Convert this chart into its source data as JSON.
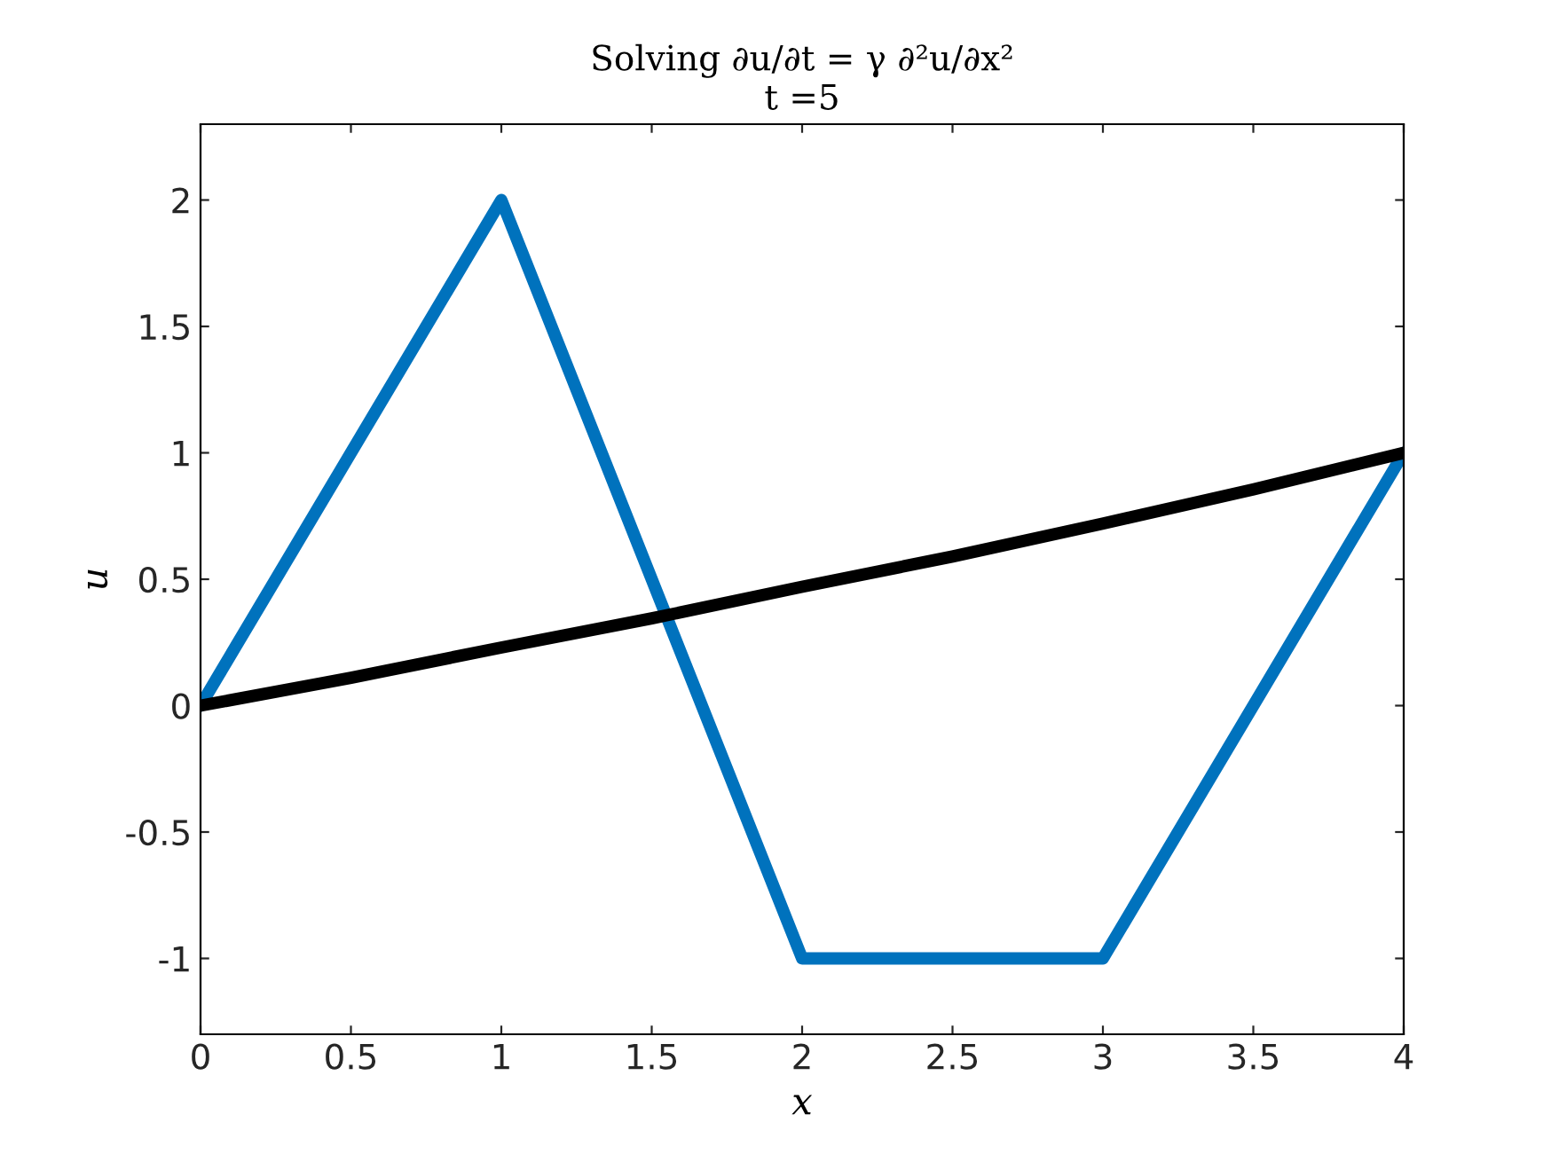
{
  "chart_data": {
    "type": "line",
    "title": "Solving ∂u/∂t = γ ∂²u/∂x²",
    "subtitle": "t =5",
    "xlabel": "x",
    "ylabel": "u",
    "xlim": [
      0,
      4
    ],
    "xticks": [
      0,
      0.5,
      1,
      1.5,
      2,
      2.5,
      3,
      3.5,
      4
    ],
    "ylim": [
      -1.3,
      2.3
    ],
    "yticks": [
      -1,
      -0.5,
      0,
      0.5,
      1,
      1.5,
      2
    ],
    "grid": false,
    "legend": false,
    "marker": "none",
    "line_style": "solid",
    "series": [
      {
        "color": "#0072bd",
        "x": [
          0,
          1,
          2,
          3,
          4
        ],
        "values": [
          0,
          2,
          -1,
          -1,
          1
        ]
      },
      {
        "color": "#000000",
        "x": [
          0,
          0.5,
          1,
          1.5,
          2,
          2.5,
          3,
          3.5,
          4
        ],
        "values": [
          0,
          0.11,
          0.23,
          0.345,
          0.47,
          0.59,
          0.72,
          0.855,
          1.0
        ]
      }
    ]
  }
}
